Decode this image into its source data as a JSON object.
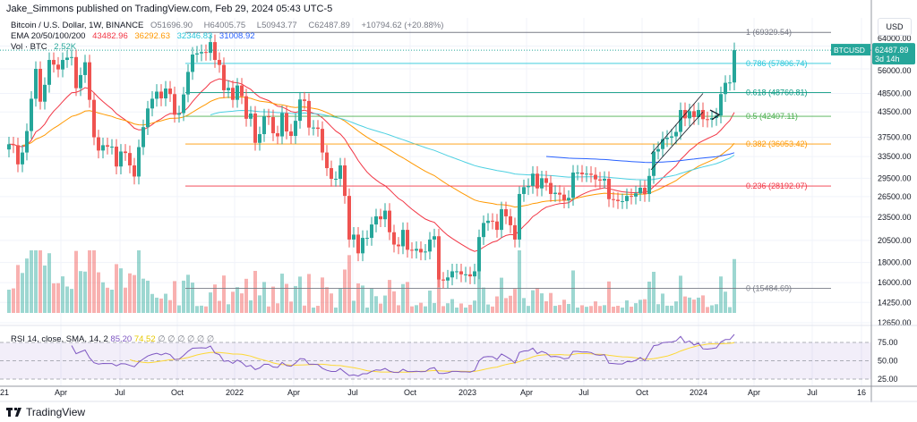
{
  "header": {
    "publisher": "Jake_Simmons published on TradingView.com, Feb 29, 2024 05:43 UTC-5"
  },
  "legend": {
    "symbol": "Bitcoin / U.S. Dollar, 1W, BINANCE",
    "open_label": "O",
    "open": "51696.90",
    "high_label": "H",
    "high": "64005.75",
    "low_label": "L",
    "low": "50943.77",
    "close_label": "C",
    "close": "62487.89",
    "change": "+10794.62 (+20.88%)",
    "ema_label": "EMA 20/50/100/200",
    "ema_values": [
      "43482.96",
      "36292.63",
      "32346.83",
      "31008.92"
    ],
    "vol_label": "Vol · BTC",
    "vol_value": "2.52K",
    "rsi_label": "RSI 14, close, SMA, 14, 2",
    "rsi_value": "85.20",
    "rsi_sma_value": "74.52",
    "rsi_na": "∅ ∅ ∅ ∅ ∅ ∅"
  },
  "price_axis": {
    "currency": "USD",
    "symbol_tag": "BTCUSD",
    "last_price": "62487.89",
    "countdown": "3d 14h",
    "ticks": [
      "64000.00",
      "56000.00",
      "48500.00",
      "43500.00",
      "37500.00",
      "33500.00",
      "29500.00",
      "26500.00",
      "23500.00",
      "20500.00",
      "18000.00",
      "16000.00",
      "14250.00",
      "12650.00"
    ],
    "rsi_ticks": [
      "75.00",
      "50.00",
      "25.00"
    ]
  },
  "time_axis": [
    "21",
    "Apr",
    "Jul",
    "Oct",
    "2022",
    "Apr",
    "Jul",
    "Oct",
    "2023",
    "Apr",
    "Jul",
    "Oct",
    "2024",
    "Apr",
    "Jul",
    "16"
  ],
  "fib_levels": [
    {
      "level": "1",
      "price": 69329.54,
      "label": "1 (69329.54)",
      "color": "#787b86"
    },
    {
      "level": "0.786",
      "price": 57806.74,
      "label": "0.786 (57806.74)",
      "color": "#26c6da"
    },
    {
      "level": "0.618",
      "price": 48760.81,
      "label": "0.618 (48760.81)",
      "color": "#089981"
    },
    {
      "level": "0.5",
      "price": 42407.11,
      "label": "0.5 (42407.11)",
      "color": "#4caf50"
    },
    {
      "level": "0.382",
      "price": 36053.42,
      "label": "0.382 (36053.42)",
      "color": "#ff9800"
    },
    {
      "level": "0.236",
      "price": 28192.07,
      "label": "0.236 (28192.07)",
      "color": "#f23645"
    },
    {
      "level": "0",
      "price": 15484.69,
      "label": "0 (15484.69)",
      "color": "#787b86"
    }
  ],
  "colors": {
    "up": "#26a69a",
    "down": "#ef5350",
    "ema20": "#f23645",
    "ema50": "#ff9800",
    "ema100": "#4dd0e1",
    "ema200": "#2962ff",
    "rsi": "#7e57c2",
    "rsi_sma": "#fdd835"
  },
  "chart_data": {
    "type": "candlestick",
    "title": "Bitcoin / U.S. Dollar, 1W, BINANCE",
    "y_scale": "log",
    "ylim": [
      11500,
      75000
    ],
    "grid": true,
    "x_start": "2021-01-04",
    "interval": "1W",
    "weekly_closes": [
      36000,
      35800,
      32000,
      34300,
      38900,
      47000,
      56000,
      46200,
      51000,
      59000,
      57400,
      55800,
      59000,
      59800,
      60000,
      50000,
      54000,
      58200,
      46700,
      37500,
      34700,
      35800,
      35500,
      35500,
      31600,
      34500,
      34200,
      31800,
      29800,
      35400,
      39800,
      44400,
      47000,
      49000,
      47100,
      49900,
      48300,
      42800,
      43200,
      48200,
      55000,
      60900,
      61300,
      61800,
      61500,
      65500,
      59000,
      57300,
      49400,
      50100,
      46700,
      50800,
      47700,
      41800,
      43100,
      36300,
      38200,
      42400,
      42200,
      38400,
      37700,
      43200,
      38800,
      37800,
      41300,
      46800,
      46400,
      39700,
      39700,
      39400,
      34300,
      31300,
      29400,
      29400,
      31800,
      26600,
      20600,
      21200,
      19000,
      20800,
      20800,
      22500,
      23600,
      23200,
      24400,
      21500,
      20000,
      19800,
      21800,
      19400,
      19300,
      19500,
      19100,
      19200,
      20600,
      21000,
      16300,
      16200,
      16500,
      17100,
      17100,
      16800,
      16800,
      16600,
      17100,
      20900,
      22700,
      23000,
      22900,
      21800,
      24600,
      23600,
      22400,
      20600,
      26900,
      28000,
      28200,
      30300,
      27800,
      29500,
      28700,
      26900,
      27100,
      26800,
      25900,
      26300,
      30500,
      30500,
      30200,
      30300,
      30100,
      29300,
      29100,
      29400,
      26100,
      26000,
      25800,
      25800,
      26600,
      26500,
      27000,
      27900,
      26900,
      29900,
      34500,
      35000,
      37100,
      37400,
      37700,
      38700,
      44000,
      41900,
      43700,
      42200,
      44000,
      41700,
      41600,
      42000,
      42600,
      48300,
      51600,
      51700,
      62487.89
    ]
  }
}
